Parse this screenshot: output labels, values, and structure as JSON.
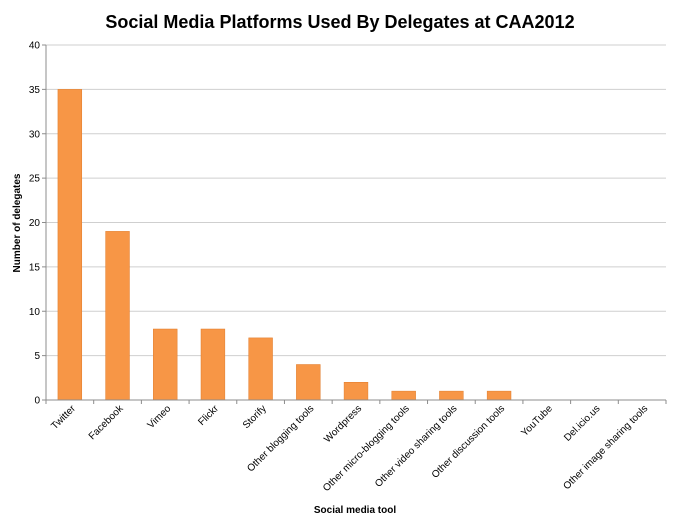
{
  "chart_data": {
    "type": "bar",
    "title": "Social Media Platforms Used By Delegates at CAA2012",
    "xlabel": "Social media tool",
    "ylabel": "Number of delegates",
    "categories": [
      "Twitter",
      "Facebook",
      "Vimeo",
      "Flickr",
      "Storify",
      "Other blogging tools",
      "Wordpress",
      "Other micro-blogging tools",
      "Other video sharing tools",
      "Other discussion tools",
      "YouTube",
      "Del.icio.us",
      "Other image sharing tools"
    ],
    "values": [
      35,
      19,
      8,
      8,
      7,
      4,
      2,
      1,
      1,
      1,
      0,
      0,
      0
    ],
    "ylim": [
      0,
      40
    ],
    "yticks": [
      "0",
      "5",
      "10",
      "15",
      "20",
      "25",
      "30",
      "35",
      "40"
    ],
    "grid": true,
    "legend": "none",
    "colors": {
      "bar": "#f79646",
      "grid": "#cfcfcf",
      "axis": "#8c8c8c"
    }
  }
}
